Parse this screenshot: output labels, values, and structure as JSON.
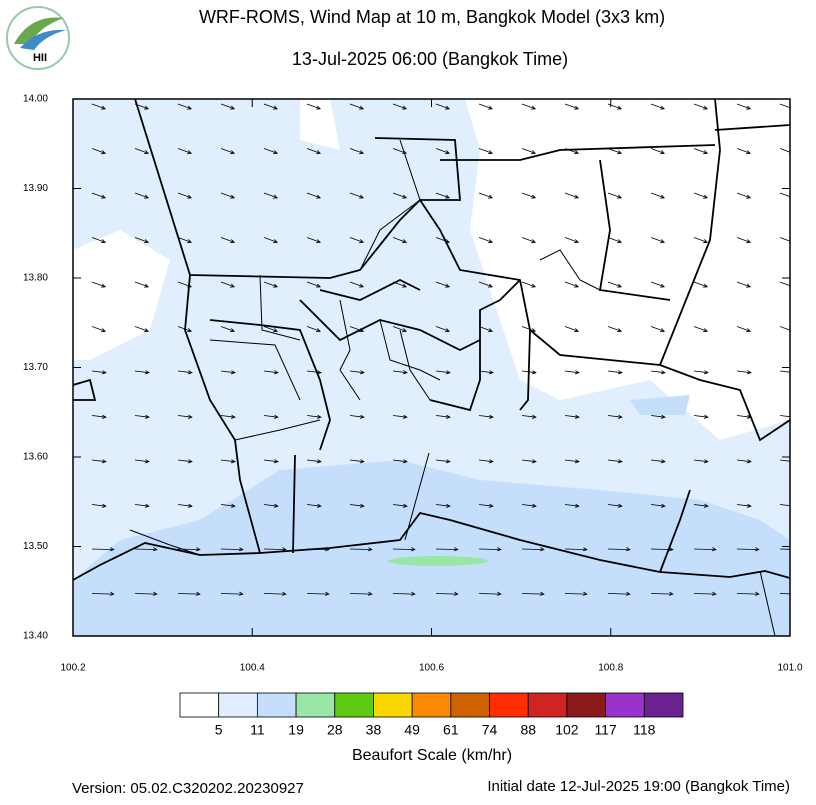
{
  "header": {
    "title": "WRF-ROMS, Wind Map at 10 m, Bangkok Model (3x3 km)",
    "subtitle": "13-Jul-2025 06:00 (Bangkok Time)",
    "logo": "HII"
  },
  "map": {
    "xlim": [
      100.2,
      {
        "value": 101,
        "label": "101.0"
      }
    ],
    "ylim": [
      {
        "value": 13.4,
        "label": "13.40"
      },
      {
        "value": 14,
        "label": "14.00"
      }
    ],
    "xticks": [
      100.2,
      100.4,
      100.6,
      100.8,
      {
        "value": 101,
        "label": "101.0"
      }
    ],
    "yticks": [
      {
        "value": 13.4,
        "label": "13.40"
      },
      {
        "value": 13.5,
        "label": "13.50"
      },
      {
        "value": 13.6,
        "label": "13.60"
      },
      {
        "value": 13.7,
        "label": "13.70"
      },
      {
        "value": 13.8,
        "label": "13.80"
      },
      {
        "value": 13.9,
        "label": "13.90"
      },
      {
        "value": 14,
        "label": "14.00"
      }
    ]
  },
  "legend": {
    "title": "Beaufort Scale (km/hr)",
    "colors": [
      "#ffffff",
      "#e0eefe",
      "#c5defc",
      "#98e6a8",
      "#5fcb12",
      "#f9d800",
      "#fa8a00",
      "#cf6200",
      "#ff2d00",
      "#d02423",
      "#8b1a1a",
      "#9933cc",
      "#6a2290"
    ],
    "labels": [
      5,
      11,
      19,
      28,
      38,
      49,
      61,
      74,
      88,
      102,
      117,
      118
    ]
  },
  "footer": {
    "version": "Version: 05.02.C320202.20230927",
    "initial_date": "Initial date 12-Jul-2025 19:00 (Bangkok Time)"
  }
}
